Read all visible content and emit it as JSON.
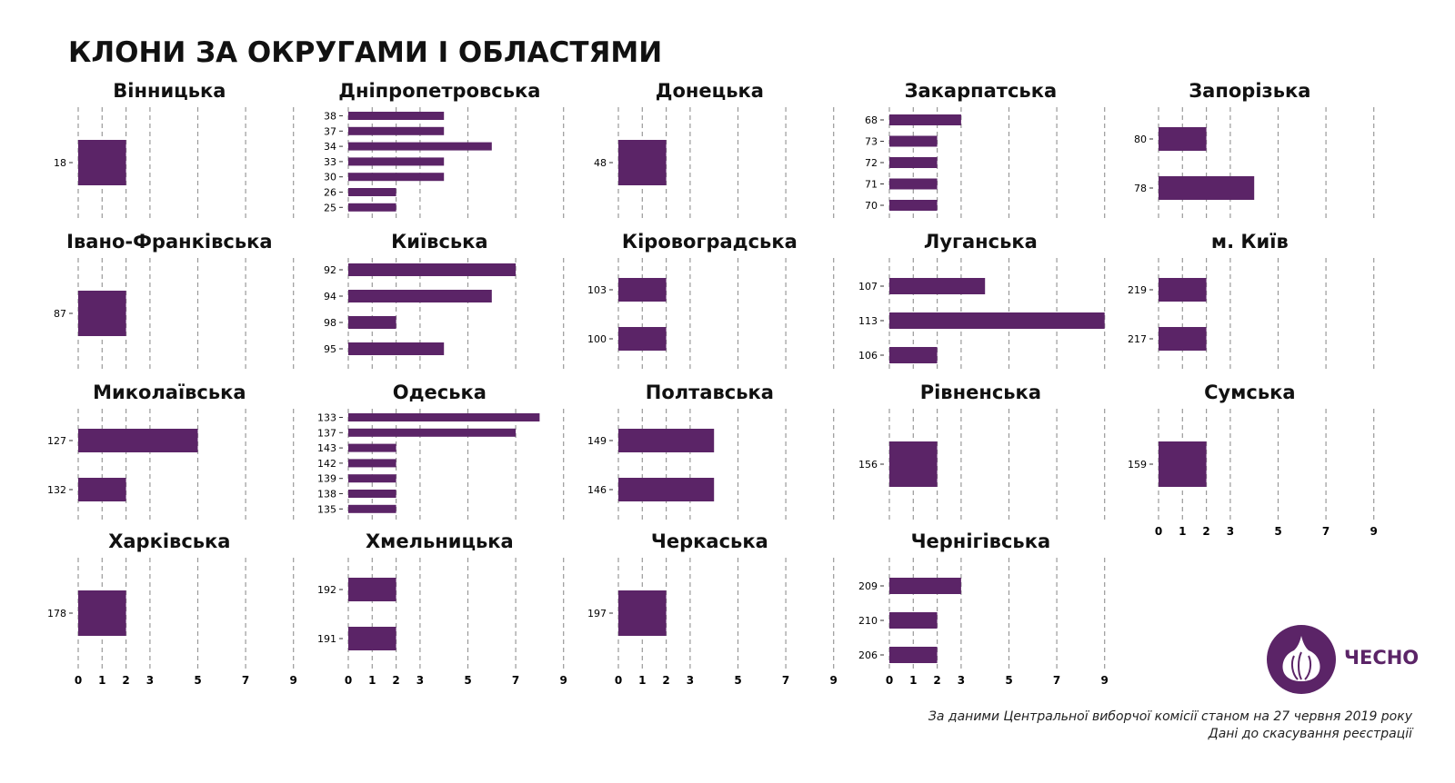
{
  "title": "КЛОНИ ЗА ОКРУГАМИ І ОБЛАСТЯМИ",
  "logo_text": "ЧЕСНО",
  "notes": [
    "За даними Центральної виборчої комісії станом на 27 червня 2019 року",
    "Дані до скасування реєстрації"
  ],
  "colors": {
    "bar": "#5b2467",
    "grid": "#999999"
  },
  "chart_data": [
    {
      "type": "bar",
      "orientation": "horizontal",
      "title": "Вінницька",
      "categories": [
        "18"
      ],
      "values": [
        2
      ],
      "xticks": [
        0,
        1,
        2,
        3,
        5,
        7,
        9
      ],
      "xlim": [
        0,
        9
      ]
    },
    {
      "type": "bar",
      "orientation": "horizontal",
      "title": "Дніпропетровська",
      "categories": [
        "38",
        "37",
        "34",
        "33",
        "30",
        "26",
        "25"
      ],
      "values": [
        4,
        4,
        6,
        4,
        4,
        2,
        2
      ],
      "xticks": [
        0,
        1,
        2,
        3,
        5,
        7,
        9
      ],
      "xlim": [
        0,
        9
      ]
    },
    {
      "type": "bar",
      "orientation": "horizontal",
      "title": "Донецька",
      "categories": [
        "48"
      ],
      "values": [
        2
      ],
      "xticks": [
        0,
        1,
        2,
        3,
        5,
        7,
        9
      ],
      "xlim": [
        0,
        9
      ]
    },
    {
      "type": "bar",
      "orientation": "horizontal",
      "title": "Закарпатська",
      "categories": [
        "68",
        "73",
        "72",
        "71",
        "70"
      ],
      "values": [
        3,
        2,
        2,
        2,
        2
      ],
      "xticks": [
        0,
        1,
        2,
        3,
        5,
        7,
        9
      ],
      "xlim": [
        0,
        9
      ]
    },
    {
      "type": "bar",
      "orientation": "horizontal",
      "title": "Запорізька",
      "categories": [
        "80",
        "78"
      ],
      "values": [
        2,
        4
      ],
      "xticks": [
        0,
        1,
        2,
        3,
        5,
        7,
        9
      ],
      "xlim": [
        0,
        9
      ]
    },
    {
      "type": "bar",
      "orientation": "horizontal",
      "title": "Івано-Франківська",
      "categories": [
        "87"
      ],
      "values": [
        2
      ],
      "xticks": [
        0,
        1,
        2,
        3,
        5,
        7,
        9
      ],
      "xlim": [
        0,
        9
      ]
    },
    {
      "type": "bar",
      "orientation": "horizontal",
      "title": "Київська",
      "categories": [
        "92",
        "94",
        "98",
        "95"
      ],
      "values": [
        7,
        6,
        2,
        4
      ],
      "xticks": [
        0,
        1,
        2,
        3,
        5,
        7,
        9
      ],
      "xlim": [
        0,
        9
      ]
    },
    {
      "type": "bar",
      "orientation": "horizontal",
      "title": "Кіровоградська",
      "categories": [
        "103",
        "100"
      ],
      "values": [
        2,
        2
      ],
      "xticks": [
        0,
        1,
        2,
        3,
        5,
        7,
        9
      ],
      "xlim": [
        0,
        9
      ]
    },
    {
      "type": "bar",
      "orientation": "horizontal",
      "title": "Луганська",
      "categories": [
        "107",
        "113",
        "106"
      ],
      "values": [
        4,
        9,
        2
      ],
      "xticks": [
        0,
        1,
        2,
        3,
        5,
        7,
        9
      ],
      "xlim": [
        0,
        9
      ]
    },
    {
      "type": "bar",
      "orientation": "horizontal",
      "title": "м. Київ",
      "categories": [
        "219",
        "217"
      ],
      "values": [
        2,
        2
      ],
      "xticks": [
        0,
        1,
        2,
        3,
        5,
        7,
        9
      ],
      "xlim": [
        0,
        9
      ]
    },
    {
      "type": "bar",
      "orientation": "horizontal",
      "title": "Миколаївська",
      "categories": [
        "127",
        "132"
      ],
      "values": [
        5,
        2
      ],
      "xticks": [
        0,
        1,
        2,
        3,
        5,
        7,
        9
      ],
      "xlim": [
        0,
        9
      ]
    },
    {
      "type": "bar",
      "orientation": "horizontal",
      "title": "Одеська",
      "categories": [
        "133",
        "137",
        "143",
        "142",
        "139",
        "138",
        "135"
      ],
      "values": [
        8,
        7,
        2,
        2,
        2,
        2,
        2
      ],
      "xticks": [
        0,
        1,
        2,
        3,
        5,
        7,
        9
      ],
      "xlim": [
        0,
        9
      ]
    },
    {
      "type": "bar",
      "orientation": "horizontal",
      "title": "Полтавська",
      "categories": [
        "149",
        "146"
      ],
      "values": [
        4,
        4
      ],
      "xticks": [
        0,
        1,
        2,
        3,
        5,
        7,
        9
      ],
      "xlim": [
        0,
        9
      ]
    },
    {
      "type": "bar",
      "orientation": "horizontal",
      "title": "Рівненська",
      "categories": [
        "156"
      ],
      "values": [
        2
      ],
      "xticks": [
        0,
        1,
        2,
        3,
        5,
        7,
        9
      ],
      "xlim": [
        0,
        9
      ]
    },
    {
      "type": "bar",
      "orientation": "horizontal",
      "title": "Сумська",
      "categories": [
        "159"
      ],
      "values": [
        2
      ],
      "xticks": [
        0,
        1,
        2,
        3,
        5,
        7,
        9
      ],
      "xlim": [
        0,
        9
      ]
    },
    {
      "type": "bar",
      "orientation": "horizontal",
      "title": "Харківська",
      "categories": [
        "178"
      ],
      "values": [
        2
      ],
      "xticks": [
        0,
        1,
        2,
        3,
        5,
        7,
        9
      ],
      "xlim": [
        0,
        9
      ]
    },
    {
      "type": "bar",
      "orientation": "horizontal",
      "title": "Хмельницька",
      "categories": [
        "192",
        "191"
      ],
      "values": [
        2,
        2
      ],
      "xticks": [
        0,
        1,
        2,
        3,
        5,
        7,
        9
      ],
      "xlim": [
        0,
        9
      ]
    },
    {
      "type": "bar",
      "orientation": "horizontal",
      "title": "Черкаська",
      "categories": [
        "197"
      ],
      "values": [
        2
      ],
      "xticks": [
        0,
        1,
        2,
        3,
        5,
        7,
        9
      ],
      "xlim": [
        0,
        9
      ]
    },
    {
      "type": "bar",
      "orientation": "horizontal",
      "title": "Чернігівська",
      "categories": [
        "209",
        "210",
        "206"
      ],
      "values": [
        3,
        2,
        2
      ],
      "xticks": [
        0,
        1,
        2,
        3,
        5,
        7,
        9
      ],
      "xlim": [
        0,
        9
      ]
    }
  ]
}
